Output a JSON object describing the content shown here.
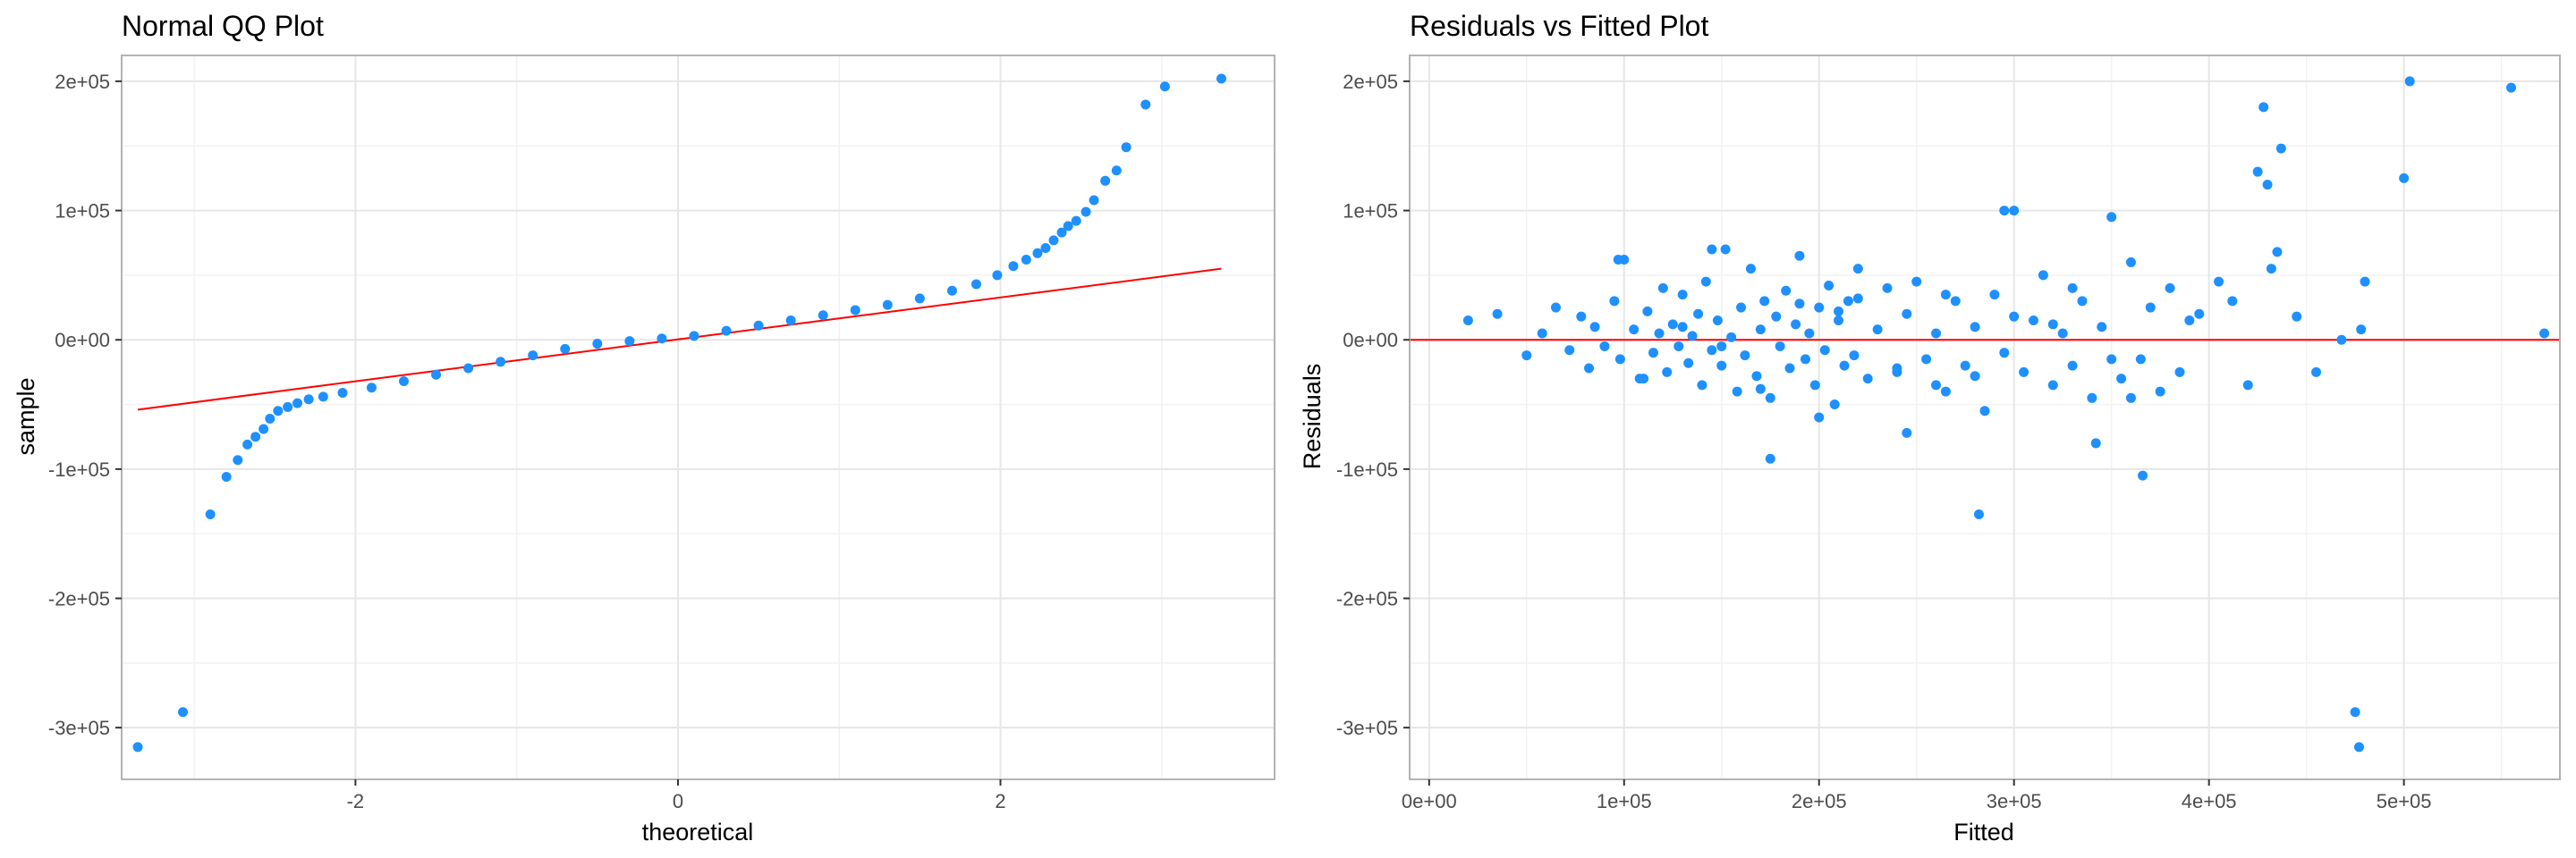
{
  "chart_data": [
    {
      "type": "scatter",
      "title": "Normal QQ Plot",
      "xlabel": "theoretical",
      "ylabel": "sample",
      "xlim": [
        -3.45,
        3.7
      ],
      "ylim": [
        -340000,
        220000
      ],
      "x_ticks": [
        -2,
        0,
        2
      ],
      "x_tick_labels": [
        "-2",
        "0",
        "2"
      ],
      "y_ticks": [
        -300000,
        -200000,
        -100000,
        0,
        100000,
        200000
      ],
      "y_tick_labels": [
        "-3e+05",
        "-2e+05",
        "-1e+05",
        "0e+00",
        "1e+05",
        "2e+05"
      ],
      "grid": true,
      "point_color": "#1e90ff",
      "line_color": "#ff0000",
      "reference_line": {
        "x": [
          -3.35,
          3.37
        ],
        "y": [
          -54000,
          55000
        ]
      },
      "series": [
        {
          "x": [
            -3.35,
            -3.07,
            -2.9,
            -2.8,
            -2.73,
            -2.67,
            -2.62,
            -2.57,
            -2.53,
            -2.48,
            -2.42,
            -2.36,
            -2.29,
            -2.2,
            -2.08,
            -1.9,
            -1.7,
            -1.5,
            -1.3,
            -1.1,
            -0.9,
            -0.7,
            -0.5,
            -0.3,
            -0.1,
            0.1,
            0.3,
            0.5,
            0.7,
            0.9,
            1.1,
            1.3,
            1.5,
            1.7,
            1.85,
            1.98,
            2.08,
            2.16,
            2.23,
            2.28,
            2.33,
            2.38,
            2.42,
            2.47,
            2.53,
            2.58,
            2.65,
            2.72,
            2.78,
            2.9,
            3.02,
            3.37
          ],
          "y": [
            -315000,
            -288000,
            -135000,
            -106000,
            -93000,
            -81000,
            -75000,
            -69000,
            -61000,
            -55000,
            -52000,
            -49000,
            -46000,
            -44000,
            -41000,
            -37000,
            -32000,
            -27000,
            -22000,
            -17000,
            -12000,
            -7000,
            -3000,
            -1000,
            1000,
            3000,
            7000,
            11000,
            15000,
            19000,
            23000,
            27000,
            32000,
            38000,
            43000,
            50000,
            57000,
            62000,
            67000,
            71000,
            77000,
            83000,
            88000,
            92000,
            99000,
            108000,
            123000,
            131000,
            149000,
            182000,
            196000,
            202000
          ]
        }
      ]
    },
    {
      "type": "scatter",
      "title": "Residuals vs Fitted Plot",
      "xlabel": "Fitted",
      "ylabel": "Residuals",
      "xlim": [
        -10000,
        580000
      ],
      "ylim": [
        -340000,
        220000
      ],
      "x_ticks": [
        0,
        100000,
        200000,
        300000,
        400000,
        500000
      ],
      "x_tick_labels": [
        "0e+00",
        "1e+05",
        "2e+05",
        "3e+05",
        "4e+05",
        "5e+05"
      ],
      "y_ticks": [
        -300000,
        -200000,
        -100000,
        0,
        100000,
        200000
      ],
      "y_tick_labels": [
        "-3e+05",
        "-2e+05",
        "-1e+05",
        "0e+00",
        "1e+05",
        "2e+05"
      ],
      "grid": true,
      "point_color": "#1e90ff",
      "line_color": "#ff0000",
      "reference_line": {
        "x": [
          -10000,
          580000
        ],
        "y": [
          0,
          0
        ]
      },
      "series": [
        {
          "x": [
            20000,
            35000,
            50000,
            58000,
            65000,
            72000,
            78000,
            82000,
            85000,
            90000,
            95000,
            98000,
            100000,
            105000,
            108000,
            112000,
            115000,
            118000,
            120000,
            122000,
            125000,
            128000,
            130000,
            133000,
            135000,
            138000,
            140000,
            142000,
            145000,
            148000,
            150000,
            152000,
            155000,
            158000,
            160000,
            162000,
            165000,
            168000,
            170000,
            172000,
            175000,
            178000,
            180000,
            183000,
            185000,
            188000,
            190000,
            193000,
            195000,
            198000,
            200000,
            203000,
            205000,
            208000,
            210000,
            213000,
            215000,
            218000,
            220000,
            225000,
            230000,
            235000,
            240000,
            245000,
            250000,
            255000,
            260000,
            265000,
            270000,
            275000,
            280000,
            285000,
            290000,
            295000,
            300000,
            305000,
            310000,
            315000,
            320000,
            325000,
            330000,
            335000,
            340000,
            345000,
            350000,
            355000,
            360000,
            365000,
            370000,
            375000,
            380000,
            385000,
            390000,
            395000,
            405000,
            412000,
            420000,
            425000,
            428000,
            430000,
            432000,
            435000,
            437000,
            445000,
            455000,
            468000,
            475000,
            477000,
            478000,
            480000,
            500000,
            503000,
            555000,
            572000,
            97000,
            145000,
            175000,
            200000,
            245000,
            265000,
            282000,
            295000,
            342000,
            366000,
            150000,
            210000,
            260000,
            320000,
            360000,
            110000,
            190000,
            240000,
            300000,
            350000,
            130000,
            170000,
            220000,
            280000,
            330000
          ],
          "y": [
            15000,
            20000,
            -12000,
            5000,
            25000,
            -8000,
            18000,
            -22000,
            10000,
            -5000,
            30000,
            -15000,
            62000,
            8000,
            -30000,
            22000,
            -10000,
            5000,
            40000,
            -25000,
            12000,
            -5000,
            35000,
            -18000,
            3000,
            20000,
            -35000,
            45000,
            -8000,
            15000,
            -20000,
            70000,
            2000,
            -40000,
            25000,
            -12000,
            55000,
            -28000,
            8000,
            30000,
            -45000,
            18000,
            -5000,
            38000,
            -22000,
            12000,
            65000,
            -15000,
            5000,
            -35000,
            25000,
            -8000,
            42000,
            -50000,
            15000,
            -20000,
            30000,
            -12000,
            55000,
            -30000,
            8000,
            40000,
            -25000,
            20000,
            45000,
            -15000,
            5000,
            -40000,
            30000,
            -20000,
            10000,
            -55000,
            35000,
            -10000,
            100000,
            -25000,
            15000,
            50000,
            -35000,
            5000,
            -20000,
            30000,
            -45000,
            10000,
            95000,
            -30000,
            60000,
            -15000,
            25000,
            -40000,
            40000,
            -25000,
            15000,
            20000,
            45000,
            30000,
            -35000,
            130000,
            180000,
            120000,
            55000,
            68000,
            148000,
            18000,
            -25000,
            0,
            -288000,
            -315000,
            8000,
            45000,
            125000,
            200000,
            195000,
            5000,
            62000,
            70000,
            -92000,
            -60000,
            -72000,
            35000,
            -135000,
            100000,
            -80000,
            -105000,
            -5000,
            22000,
            -35000,
            12000,
            -45000,
            -30000,
            28000,
            -22000,
            18000,
            -15000,
            10000,
            -38000,
            32000,
            -28000,
            40000
          ]
        }
      ]
    }
  ]
}
